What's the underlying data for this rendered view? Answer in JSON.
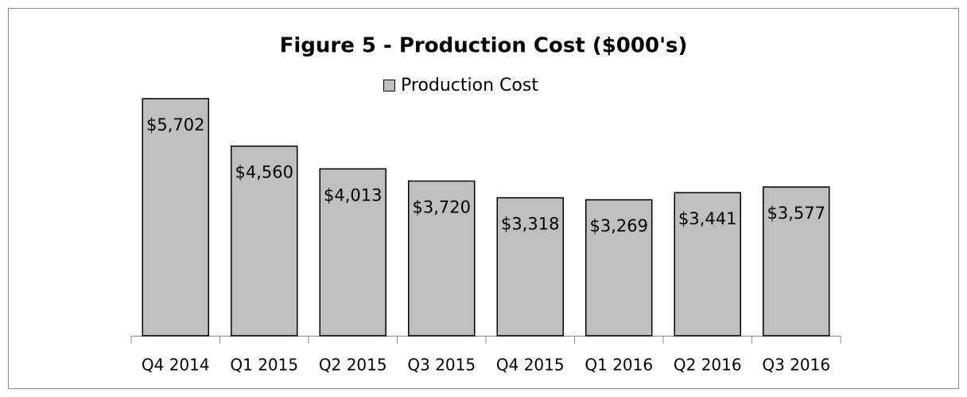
{
  "chart_data": {
    "type": "bar",
    "title": "Figure 5 - Production Cost ($000's)",
    "categories": [
      "Q4 2014",
      "Q1 2015",
      "Q2 2015",
      "Q3 2015",
      "Q4 2015",
      "Q1 2016",
      "Q2 2016",
      "Q3 2016"
    ],
    "series": [
      {
        "name": "Production Cost",
        "color": "#bfbfbf",
        "values": [
          5702,
          4560,
          4013,
          3720,
          3318,
          3269,
          3441,
          3577
        ],
        "value_labels": [
          "$5,702",
          "$4,560",
          "$4,013",
          "$3,720",
          "$3,318",
          "$3,269",
          "$3,441",
          "$3,577"
        ]
      }
    ],
    "legend": "top"
  }
}
